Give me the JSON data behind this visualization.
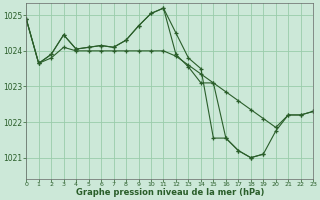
{
  "title": "Graphe pression niveau de la mer (hPa)",
  "bg_color": "#cce8d8",
  "grid_color": "#99ccaa",
  "line_color": "#2a5e2a",
  "xlim": [
    0,
    23
  ],
  "ylim": [
    1020.4,
    1025.35
  ],
  "yticks": [
    1021,
    1022,
    1023,
    1024,
    1025
  ],
  "xticks": [
    0,
    1,
    2,
    3,
    4,
    5,
    6,
    7,
    8,
    9,
    10,
    11,
    12,
    13,
    14,
    15,
    16,
    17,
    18,
    19,
    20,
    21,
    22,
    23
  ],
  "series": [
    {
      "x": [
        0,
        1,
        2,
        3,
        4,
        5,
        6,
        7,
        8,
        9,
        10,
        11,
        12,
        13,
        14,
        15,
        16,
        17,
        18,
        19,
        20,
        21,
        22,
        23
      ],
      "y": [
        1024.9,
        1023.65,
        1023.8,
        1024.1,
        1024.0,
        1024.0,
        1024.0,
        1024.0,
        1024.0,
        1024.0,
        1024.0,
        1024.0,
        1023.85,
        1023.6,
        1023.35,
        1023.1,
        1022.85,
        1022.6,
        1022.35,
        1022.1,
        1021.85,
        1022.2,
        1022.2,
        1022.3
      ]
    },
    {
      "x": [
        0,
        1,
        2,
        3,
        4,
        5,
        6,
        7,
        8,
        9,
        10,
        11,
        12,
        13,
        14,
        15,
        16,
        17,
        18,
        19
      ],
      "y": [
        1024.9,
        1023.65,
        1023.9,
        1024.45,
        1024.05,
        1024.1,
        1024.15,
        1024.1,
        1024.3,
        1024.7,
        1025.05,
        1025.2,
        1024.5,
        1023.8,
        1023.5,
        1021.55,
        1021.55,
        1021.2,
        1021.0,
        1021.1
      ]
    },
    {
      "x": [
        0,
        1,
        2,
        3,
        4,
        5,
        6,
        7,
        8,
        9,
        10,
        11,
        12,
        13,
        14,
        15,
        16,
        17,
        18,
        19,
        20,
        21,
        22,
        23
      ],
      "y": [
        1024.9,
        1023.65,
        1023.9,
        1024.45,
        1024.05,
        1024.1,
        1024.15,
        1024.1,
        1024.3,
        1024.7,
        1025.05,
        1025.2,
        1023.9,
        1023.55,
        1023.1,
        1023.1,
        1021.55,
        1021.2,
        1021.0,
        1021.1,
        1021.75,
        1022.2,
        1022.2,
        1022.3
      ]
    }
  ]
}
